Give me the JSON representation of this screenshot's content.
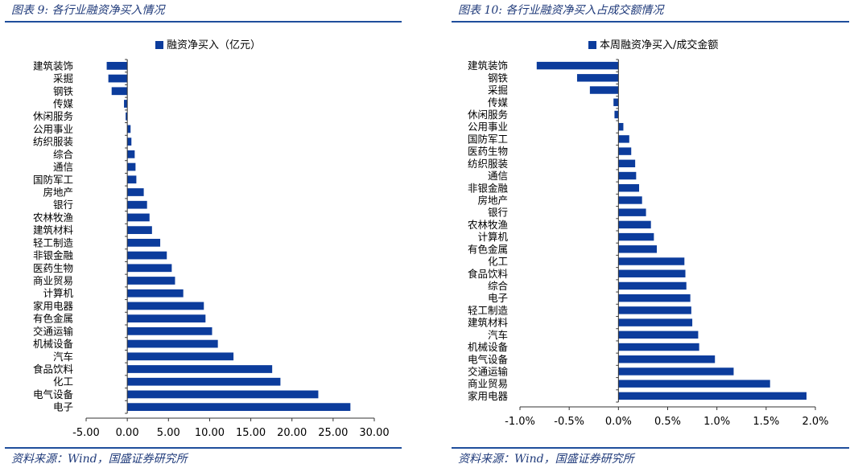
{
  "left_panel": {
    "title": "图表 9:  各行业融资净买入情况",
    "source": "资料来源：Wind，国盛证券研究所"
  },
  "right_panel": {
    "title": "图表 10:  各行业融资净买入占成交额情况",
    "source": "资料来源：Wind，国盛证券研究所"
  },
  "colors": {
    "bar": "#0c3c9c",
    "accent": "#1f4e9c",
    "title_text": "#1f3a7a"
  },
  "chart_data": [
    {
      "type": "bar",
      "orientation": "horizontal",
      "title": "",
      "legend": "融资净买入（亿元）",
      "legend_position": "top-center",
      "categories": [
        "建筑装饰",
        "采掘",
        "钢铁",
        "传媒",
        "休闲服务",
        "公用事业",
        "纺织服装",
        "综合",
        "通信",
        "国防军工",
        "房地产",
        "银行",
        "农林牧渔",
        "建筑材料",
        "轻工制造",
        "非银金融",
        "医药生物",
        "商业贸易",
        "计算机",
        "家用电器",
        "有色金属",
        "交通运输",
        "机械设备",
        "汽车",
        "食品饮料",
        "化工",
        "电气设备",
        "电子"
      ],
      "values": [
        -2.5,
        -2.3,
        -1.9,
        -0.4,
        -0.2,
        0.4,
        0.5,
        0.9,
        1.0,
        1.1,
        2.0,
        2.4,
        2.7,
        3.0,
        4.0,
        4.8,
        5.4,
        5.8,
        6.8,
        9.3,
        9.5,
        10.3,
        11.0,
        12.9,
        17.6,
        18.6,
        23.2,
        27.1
      ],
      "xlim": [
        -5,
        30
      ],
      "xticks": [
        -5,
        0,
        5,
        10,
        15,
        20,
        25,
        30
      ],
      "xtick_labels": [
        "-5.00",
        "0.00",
        "5.00",
        "10.00",
        "15.00",
        "20.00",
        "25.00",
        "30.00"
      ],
      "grid": false
    },
    {
      "type": "bar",
      "orientation": "horizontal",
      "title": "",
      "legend": "本周融资净买入/成交金额",
      "legend_position": "top-center",
      "categories": [
        "建筑装饰",
        "钢铁",
        "采掘",
        "传媒",
        "休闲服务",
        "公用事业",
        "国防军工",
        "医药生物",
        "纺织服装",
        "通信",
        "非银金融",
        "房地产",
        "银行",
        "农林牧渔",
        "计算机",
        "有色金属",
        "化工",
        "食品饮料",
        "综合",
        "电子",
        "轻工制造",
        "建筑材料",
        "汽车",
        "机械设备",
        "电气设备",
        "交通运输",
        "商业贸易",
        "家用电器"
      ],
      "values": [
        -0.83,
        -0.42,
        -0.29,
        -0.05,
        -0.04,
        0.05,
        0.11,
        0.13,
        0.17,
        0.18,
        0.21,
        0.24,
        0.28,
        0.33,
        0.36,
        0.39,
        0.67,
        0.68,
        0.69,
        0.73,
        0.74,
        0.75,
        0.81,
        0.82,
        0.98,
        1.17,
        1.54,
        1.91
      ],
      "xlim": [
        -1.0,
        2.0
      ],
      "xticks": [
        -1.0,
        -0.5,
        0,
        0.5,
        1.0,
        1.5,
        2.0
      ],
      "xtick_labels": [
        "-1.0%",
        "-0.5%",
        "0.0%",
        "0.5%",
        "1.0%",
        "1.5%",
        "2.0%"
      ],
      "unit": "%",
      "grid": false
    }
  ]
}
